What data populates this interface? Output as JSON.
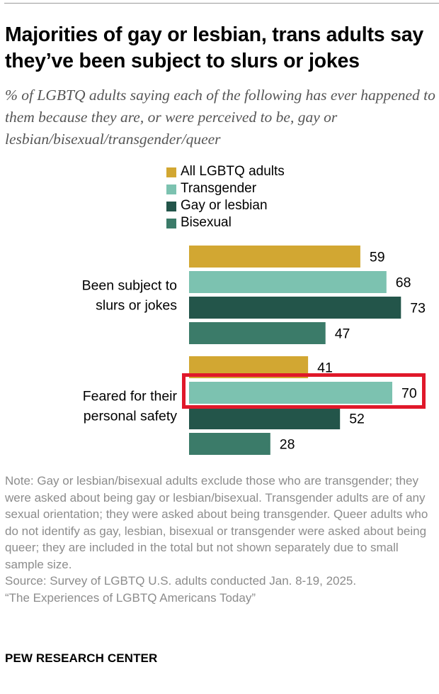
{
  "title": "Majorities of gay or lesbian, trans adults say they’ve been subject to slurs or jokes",
  "subtitle": "% of LGBTQ adults saying each of the following has ever happened to them because they are, or were perceived to be, gay or lesbian/bisexual/transgender/queer",
  "legend": [
    {
      "label": "All LGBTQ adults",
      "color": "#d2a732"
    },
    {
      "label": "Transgender",
      "color": "#7cc2b0"
    },
    {
      "label": "Gay or lesbian",
      "color": "#23554a"
    },
    {
      "label": "Bisexual",
      "color": "#3b7b69"
    }
  ],
  "chart_data": {
    "type": "bar",
    "orientation": "horizontal",
    "categories": [
      "Been subject to slurs or jokes",
      "Feared for their personal safety"
    ],
    "category_lines": [
      [
        "Been subject to",
        "slurs or jokes"
      ],
      [
        "Feared for their",
        "personal safety"
      ]
    ],
    "series": [
      {
        "name": "All LGBTQ adults",
        "values": [
          59,
          41
        ]
      },
      {
        "name": "Transgender",
        "values": [
          68,
          70
        ]
      },
      {
        "name": "Gay or lesbian",
        "values": [
          73,
          52
        ]
      },
      {
        "name": "Bisexual",
        "values": [
          47,
          28
        ]
      }
    ],
    "xlim": [
      0,
      100
    ],
    "highlight": {
      "category": "Feared for their personal safety",
      "series": "Transgender",
      "color": "#e0182a"
    }
  },
  "note": "Note: Gay or lesbian/bisexual adults exclude those who are transgender; they were asked about being gay or lesbian/bisexual. Transgender adults are of any sexual orientation; they were asked about being transgender. Queer adults who do not identify as gay, lesbian, bisexual or transgender were asked about being queer; they are included in the total but not shown separately due to small sample size.",
  "source": "Source: Survey of LGBTQ U.S. adults conducted Jan. 8-19, 2025.",
  "report": "“The Experiences of LGBTQ Americans Today”",
  "footer": "PEW RESEARCH CENTER"
}
